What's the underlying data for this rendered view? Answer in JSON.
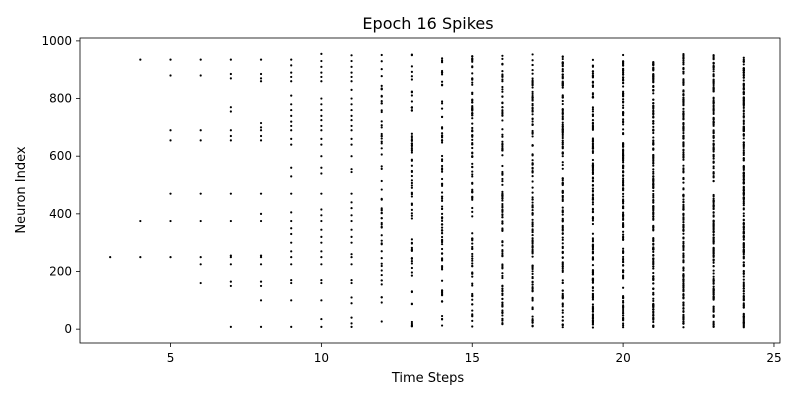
{
  "chart_data": {
    "type": "scatter",
    "title": "Epoch 16 Spikes",
    "xlabel": "Time Steps",
    "ylabel": "Neuron Index",
    "xlim": [
      2,
      25.2
    ],
    "ylim": [
      -48,
      1010
    ],
    "xticks": [
      5,
      10,
      15,
      20,
      25
    ],
    "yticks": [
      0,
      200,
      400,
      600,
      800,
      1000
    ],
    "grid": false,
    "legend": "none",
    "marker_color": "#000000",
    "spikes": [
      {
        "t": 3,
        "neurons": [
          250
        ]
      },
      {
        "t": 4,
        "neurons": [
          250,
          375,
          935
        ]
      },
      {
        "t": 5,
        "neurons": [
          250,
          375,
          470,
          655,
          690,
          880,
          935
        ]
      },
      {
        "t": 6,
        "neurons": [
          160,
          225,
          250,
          375,
          470,
          655,
          690,
          880,
          935
        ]
      },
      {
        "t": 7,
        "neurons": [
          8,
          150,
          165,
          225,
          250,
          255,
          375,
          470,
          655,
          670,
          690,
          755,
          770,
          870,
          885,
          935
        ]
      },
      {
        "t": 8,
        "neurons": [
          8,
          100,
          150,
          165,
          225,
          250,
          255,
          375,
          400,
          470,
          655,
          670,
          690,
          700,
          715,
          860,
          870,
          885,
          935
        ]
      },
      {
        "t": 9,
        "neurons": [
          8,
          100,
          160,
          170,
          225,
          250,
          270,
          300,
          330,
          350,
          375,
          405,
          470,
          530,
          560,
          640,
          660,
          690,
          705,
          720,
          740,
          760,
          780,
          810,
          860,
          875,
          890,
          915,
          935
        ]
      },
      {
        "t": 10,
        "neurons": [
          8,
          35,
          100,
          160,
          170,
          225,
          250,
          270,
          300,
          320,
          345,
          375,
          395,
          415,
          470,
          540,
          560,
          600,
          640,
          660,
          690,
          705,
          725,
          740,
          760,
          780,
          800,
          860,
          875,
          890,
          910,
          930,
          955
        ]
      },
      {
        "t": 11,
        "neurons": [
          8,
          20,
          40,
          90,
          110,
          160,
          170,
          225,
          250,
          260,
          300,
          320,
          345,
          375,
          395,
          420,
          440,
          470,
          545,
          555,
          600,
          640,
          660,
          690,
          705,
          725,
          740,
          760,
          780,
          800,
          830,
          860,
          875,
          890,
          910,
          930,
          950
        ]
      }
    ],
    "dense": {
      "t_start": 12,
      "t_end": 24,
      "count_start": 60,
      "count_end": 230,
      "n_min": 5,
      "n_max": 955
    }
  }
}
